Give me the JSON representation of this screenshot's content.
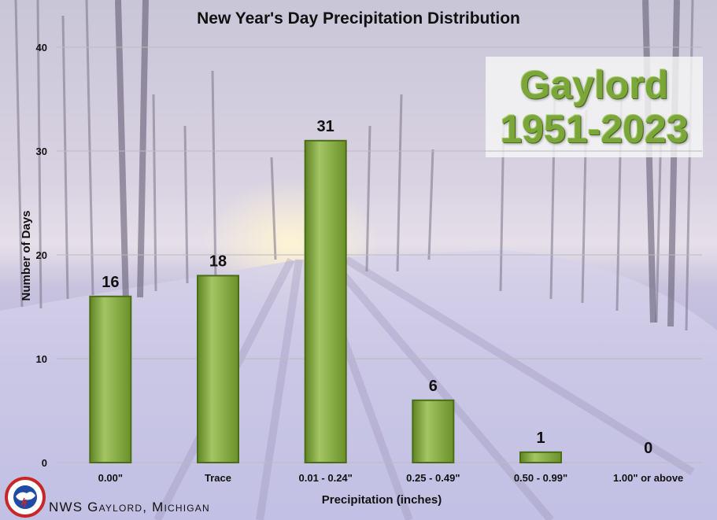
{
  "title": "New Year's Day Precipitation Distribution",
  "badge": {
    "line1": "Gaylord",
    "line2": "1951-2023"
  },
  "footer": "NWS Gaylord, Michigan",
  "logo_icon": "nws-logo-icon",
  "colors": {
    "bar": "#7ea23a",
    "bar_dark": "#4a6d18",
    "bar_light": "#a7c86a",
    "grid": "#bbbbbb",
    "badge_text": "#7aa63a"
  },
  "chart_data": {
    "type": "bar",
    "title": "New Year's Day Precipitation Distribution",
    "xlabel": "Precipitation (inches)",
    "ylabel": "Number of Days",
    "categories": [
      "0.00\"",
      "Trace",
      "0.01 - 0.24\"",
      "0.25 - 0.49\"",
      "0.50 - 0.99\"",
      "1.00\" or above"
    ],
    "values": [
      16,
      18,
      31,
      6,
      1,
      0
    ],
    "ylim": [
      0,
      40
    ],
    "yticks": [
      "0",
      "10",
      "20",
      "30",
      "40"
    ],
    "grid": true,
    "data_labels": true
  }
}
